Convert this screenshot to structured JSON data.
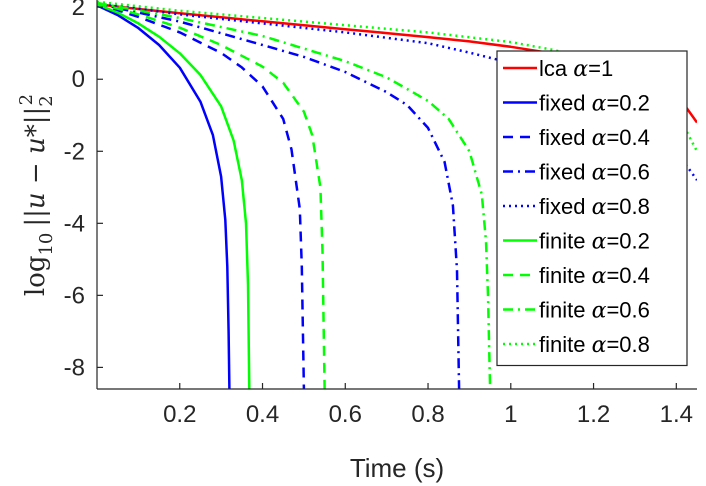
{
  "chart_data": {
    "type": "line",
    "xlabel": "Time (s)",
    "ylabel": {
      "base": "log",
      "subscript": "10",
      "expression": "||u − u*||",
      "norm_subscript": "2",
      "norm_superscript": "2"
    },
    "xlim": [
      0,
      1.45
    ],
    "ylim": [
      -8.6,
      2.2
    ],
    "x_ticks": [
      0.2,
      0.4,
      0.6,
      0.8,
      1,
      1.2,
      1.4
    ],
    "x_tick_labels": [
      "0.2",
      "0.4",
      "0.6",
      "0.8",
      "1",
      "1.2",
      "1.4"
    ],
    "y_ticks": [
      2,
      0,
      -2,
      -4,
      -6,
      -8
    ],
    "y_tick_labels": [
      "2",
      "0",
      "-2",
      "-4",
      "-6",
      "-8"
    ],
    "grid": false,
    "legend_position": "top-right",
    "colors": {
      "red": "#ff0000",
      "blue": "#0000ff",
      "green": "#00ff00",
      "axis": "#262626"
    },
    "series": [
      {
        "name": "lca",
        "alpha": "α=1",
        "color": "#ff0000",
        "dash": "solid",
        "x": [
          0,
          0.1,
          0.2,
          0.3,
          0.4,
          0.5,
          0.6,
          0.7,
          0.8,
          0.9,
          1.0,
          1.1,
          1.2,
          1.3,
          1.35,
          1.4,
          1.45
        ],
        "y": [
          2.08,
          1.95,
          1.83,
          1.72,
          1.61,
          1.5,
          1.39,
          1.28,
          1.17,
          1.05,
          0.9,
          0.72,
          0.5,
          0.2,
          0.0,
          -0.4,
          -1.2
        ]
      },
      {
        "name": "fixed",
        "alpha": "α=0.2",
        "color": "#0000ff",
        "dash": "solid",
        "x": [
          0,
          0.05,
          0.1,
          0.15,
          0.2,
          0.25,
          0.28,
          0.3,
          0.31,
          0.315,
          0.318,
          0.32
        ],
        "y": [
          2.05,
          1.78,
          1.42,
          0.95,
          0.32,
          -0.62,
          -1.55,
          -2.7,
          -3.9,
          -5.2,
          -7.0,
          -8.6
        ]
      },
      {
        "name": "fixed",
        "alpha": "α=0.4",
        "color": "#0000ff",
        "dash": "dashed",
        "x": [
          0,
          0.1,
          0.2,
          0.3,
          0.35,
          0.4,
          0.45,
          0.47,
          0.49,
          0.495,
          0.5
        ],
        "y": [
          2.1,
          1.73,
          1.3,
          0.73,
          0.33,
          -0.2,
          -1.1,
          -1.95,
          -3.6,
          -5.2,
          -8.6
        ]
      },
      {
        "name": "fixed",
        "alpha": "α=0.6",
        "color": "#0000ff",
        "dash": "dashdot",
        "x": [
          0,
          0.2,
          0.4,
          0.5,
          0.6,
          0.7,
          0.75,
          0.8,
          0.84,
          0.86,
          0.87,
          0.875
        ],
        "y": [
          2.1,
          1.6,
          0.95,
          0.62,
          0.2,
          -0.36,
          -0.72,
          -1.35,
          -2.3,
          -3.5,
          -5.3,
          -8.6
        ]
      },
      {
        "name": "fixed",
        "alpha": "α=0.8",
        "color": "#0000ff",
        "dash": "dotted",
        "x": [
          0,
          0.2,
          0.4,
          0.6,
          0.8,
          0.9,
          1.0,
          1.1,
          1.2,
          1.3,
          1.4,
          1.45
        ],
        "y": [
          2.12,
          1.8,
          1.55,
          1.3,
          1.0,
          0.74,
          0.45,
          0.05,
          -0.45,
          -1.05,
          -2.0,
          -2.8
        ]
      },
      {
        "name": "finite",
        "alpha": "α=0.2",
        "color": "#00ff00",
        "dash": "solid",
        "x": [
          0,
          0.05,
          0.1,
          0.15,
          0.2,
          0.25,
          0.3,
          0.33,
          0.35,
          0.36,
          0.365,
          0.368
        ],
        "y": [
          2.08,
          1.85,
          1.55,
          1.18,
          0.72,
          0.12,
          -0.75,
          -1.7,
          -2.8,
          -4.0,
          -5.7,
          -8.6
        ]
      },
      {
        "name": "finite",
        "alpha": "α=0.4",
        "color": "#00ff00",
        "dash": "dashed",
        "x": [
          0,
          0.1,
          0.2,
          0.3,
          0.4,
          0.45,
          0.5,
          0.52,
          0.54,
          0.545,
          0.55
        ],
        "y": [
          2.12,
          1.8,
          1.43,
          0.95,
          0.35,
          -0.1,
          -0.9,
          -1.55,
          -3.0,
          -4.8,
          -8.6
        ]
      },
      {
        "name": "finite",
        "alpha": "α=0.6",
        "color": "#00ff00",
        "dash": "dashdot",
        "x": [
          0,
          0.2,
          0.4,
          0.6,
          0.7,
          0.8,
          0.85,
          0.9,
          0.93,
          0.94,
          0.945,
          0.95
        ],
        "y": [
          2.12,
          1.7,
          1.2,
          0.5,
          0.05,
          -0.6,
          -1.1,
          -2.0,
          -3.2,
          -4.5,
          -6.0,
          -8.6
        ]
      },
      {
        "name": "finite",
        "alpha": "α=0.8",
        "color": "#00ff00",
        "dash": "dotted",
        "x": [
          0,
          0.2,
          0.4,
          0.6,
          0.8,
          1.0,
          1.1,
          1.2,
          1.3,
          1.35,
          1.4,
          1.45
        ],
        "y": [
          2.15,
          1.9,
          1.7,
          1.5,
          1.3,
          1.03,
          0.82,
          0.55,
          0.15,
          -0.2,
          -0.9,
          -2.0
        ]
      }
    ]
  }
}
